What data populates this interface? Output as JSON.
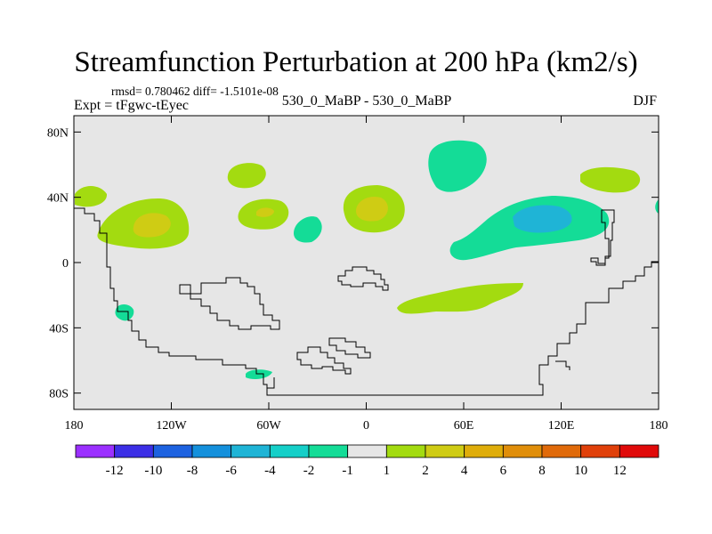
{
  "chart_data": {
    "type": "contour-map",
    "title": "Streamfunction Perturbation at 200 hPa (km2/s)",
    "stats_line": "rmsd= 0.780462  diff= -1.5101e-08",
    "left_label": "Expt = tFgwc-tEyec",
    "center_label": "530_0_MaBP - 530_0_MaBP",
    "right_label": "DJF",
    "xlim": [
      -180,
      180
    ],
    "ylim": [
      -90,
      90
    ],
    "x_ticks": [
      {
        "value": -180,
        "label": "180"
      },
      {
        "value": -120,
        "label": "120W"
      },
      {
        "value": -60,
        "label": "60W"
      },
      {
        "value": 0,
        "label": "0"
      },
      {
        "value": 60,
        "label": "60E"
      },
      {
        "value": 120,
        "label": "120E"
      },
      {
        "value": 180,
        "label": "180"
      }
    ],
    "y_ticks": [
      {
        "value": 80,
        "label": "80N"
      },
      {
        "value": 40,
        "label": "40N"
      },
      {
        "value": 0,
        "label": "0"
      },
      {
        "value": -40,
        "label": "40S"
      },
      {
        "value": -80,
        "label": "80S"
      }
    ],
    "colorbar": {
      "colors": [
        "#9b30ff",
        "#3c2fe6",
        "#1d62e0",
        "#1490dc",
        "#1fb4d6",
        "#15cfc8",
        "#14dc97",
        "#e6e6e6",
        "#a3db10",
        "#cfcc14",
        "#dfad0a",
        "#e08e0a",
        "#e06a0a",
        "#e0400a",
        "#e00a0a"
      ],
      "labels": [
        "-12",
        "-10",
        "-8",
        "-6",
        "-4",
        "-2",
        "-1",
        "1",
        "2",
        "4",
        "6",
        "8",
        "10",
        "12"
      ]
    },
    "anomalies": [
      {
        "name": "north-pacific-positive",
        "lon": -150,
        "lat": 20,
        "value": 4
      },
      {
        "name": "nw-america-positive",
        "lon": -168,
        "lat": 37,
        "value": 2
      },
      {
        "name": "east-pacific-positive",
        "lon": -68,
        "lat": 55,
        "value": 2
      },
      {
        "name": "north-america-positive",
        "lon": -60,
        "lat": 30,
        "value": 4
      },
      {
        "name": "atlantic-negative",
        "lon": -35,
        "lat": 20,
        "value": -1
      },
      {
        "name": "europe-positive",
        "lon": 5,
        "lat": 35,
        "value": 4
      },
      {
        "name": "arctic-russia-negative",
        "lon": 55,
        "lat": 57,
        "value": -1
      },
      {
        "name": "asia-negative",
        "lon": 115,
        "lat": 28,
        "value": -4
      },
      {
        "name": "north-pacific-east-positive",
        "lon": 145,
        "lat": 50,
        "value": 2
      },
      {
        "name": "indian-ocean-positive",
        "lon": 50,
        "lat": -22,
        "value": 2
      },
      {
        "name": "south-pacific-negative",
        "lon": -150,
        "lat": -30,
        "value": -1
      },
      {
        "name": "southern-ocean-negative",
        "lon": -62,
        "lat": -70,
        "value": -1
      }
    ]
  }
}
